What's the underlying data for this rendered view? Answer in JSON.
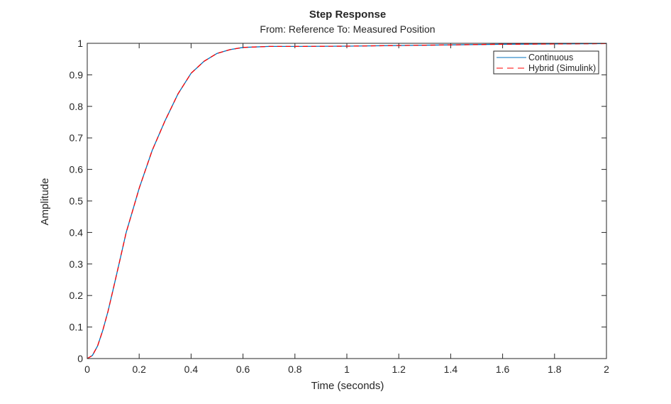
{
  "chart_data": {
    "type": "line",
    "title": "Step Response",
    "subtitle": "From: Reference  To: Measured Position",
    "xlabel": "Time (seconds)",
    "ylabel": "Amplitude",
    "xlim": [
      0,
      2
    ],
    "ylim": [
      0,
      1
    ],
    "xticks": [
      "0",
      "0.2",
      "0.4",
      "0.6",
      "0.8",
      "1",
      "1.2",
      "1.4",
      "1.6",
      "1.8",
      "2"
    ],
    "yticks": [
      "0",
      "0.1",
      "0.2",
      "0.3",
      "0.4",
      "0.5",
      "0.6",
      "0.7",
      "0.8",
      "0.9",
      "1"
    ],
    "grid": false,
    "legend_position": "top-right",
    "steady_state_value": 1,
    "x": [
      0,
      0.02,
      0.04,
      0.06,
      0.08,
      0.1,
      0.125,
      0.15,
      0.175,
      0.2,
      0.25,
      0.3,
      0.35,
      0.4,
      0.45,
      0.5,
      0.55,
      0.6,
      0.7,
      0.8,
      1.0,
      1.2,
      1.4,
      1.6,
      1.8,
      2.0
    ],
    "series": [
      {
        "name": "Continuous",
        "color": "#0072BD",
        "style": "solid",
        "values": [
          0,
          0.01,
          0.04,
          0.09,
          0.15,
          0.22,
          0.31,
          0.4,
          0.47,
          0.54,
          0.66,
          0.755,
          0.84,
          0.905,
          0.943,
          0.968,
          0.98,
          0.987,
          0.99,
          0.99,
          0.991,
          0.993,
          0.995,
          0.997,
          0.998,
          0.999
        ]
      },
      {
        "name": "Hybrid (Simulink)",
        "color": "#FF0000",
        "style": "dashed",
        "values": [
          0,
          0.01,
          0.04,
          0.09,
          0.15,
          0.22,
          0.31,
          0.4,
          0.47,
          0.54,
          0.66,
          0.755,
          0.84,
          0.905,
          0.943,
          0.968,
          0.98,
          0.987,
          0.99,
          0.99,
          0.991,
          0.993,
          0.995,
          0.997,
          0.998,
          0.999
        ]
      }
    ]
  }
}
